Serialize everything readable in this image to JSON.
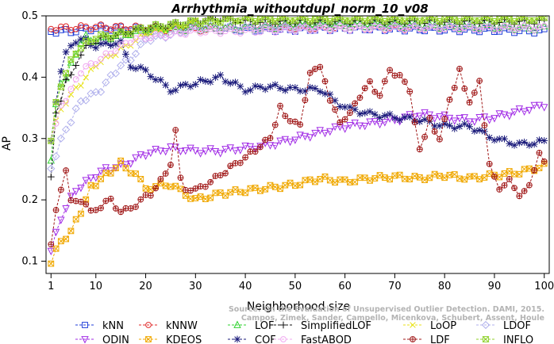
{
  "chart_data": {
    "type": "line",
    "title": "Arrhythmia_withoutdupl_norm_10_v08",
    "xlabel": "Neighborhood size",
    "ylabel": "AP",
    "xlim": [
      0,
      101
    ],
    "ylim": [
      0.08,
      0.5
    ],
    "x_ticks": [
      1,
      10,
      20,
      30,
      40,
      50,
      60,
      70,
      80,
      90,
      100
    ],
    "y_ticks": [
      0.1,
      0.2,
      0.3,
      0.4,
      0.5
    ],
    "legend_position": "bottom",
    "watermark": {
      "line1": "Source: On the Evaluation of Unsupervised Outlier Detection. DAMI, 2015.",
      "line2": "Campos, Zimek, Sander, Campello, Micenkova, Schubert, Assent, Houle"
    },
    "series": [
      {
        "name": "kNN",
        "color": "#1f3ed8",
        "marker": "square",
        "anchors": [
          [
            1,
            0.475
          ],
          [
            5,
            0.475
          ],
          [
            10,
            0.48
          ],
          [
            20,
            0.478
          ],
          [
            30,
            0.48
          ],
          [
            40,
            0.478
          ],
          [
            50,
            0.478
          ],
          [
            60,
            0.48
          ],
          [
            70,
            0.479
          ],
          [
            80,
            0.478
          ],
          [
            90,
            0.477
          ],
          [
            100,
            0.475
          ]
        ]
      },
      {
        "name": "kNNW",
        "color": "#e02a2a",
        "marker": "circle",
        "anchors": [
          [
            1,
            0.48
          ],
          [
            5,
            0.48
          ],
          [
            10,
            0.482
          ],
          [
            20,
            0.48
          ],
          [
            30,
            0.478
          ],
          [
            40,
            0.48
          ],
          [
            50,
            0.482
          ],
          [
            60,
            0.48
          ],
          [
            70,
            0.481
          ],
          [
            80,
            0.48
          ],
          [
            90,
            0.48
          ],
          [
            100,
            0.48
          ]
        ]
      },
      {
        "name": "LOF",
        "color": "#2ed32e",
        "marker": "triangle",
        "anchors": [
          [
            1,
            0.265
          ],
          [
            2,
            0.36
          ],
          [
            3,
            0.39
          ],
          [
            4,
            0.4
          ],
          [
            5,
            0.42
          ],
          [
            6,
            0.44
          ],
          [
            7,
            0.455
          ],
          [
            8,
            0.465
          ],
          [
            10,
            0.46
          ],
          [
            15,
            0.47
          ],
          [
            20,
            0.475
          ],
          [
            30,
            0.48
          ],
          [
            40,
            0.48
          ],
          [
            50,
            0.485
          ],
          [
            60,
            0.485
          ],
          [
            70,
            0.485
          ],
          [
            80,
            0.483
          ],
          [
            90,
            0.483
          ],
          [
            100,
            0.48
          ]
        ]
      },
      {
        "name": "SimplifiedLOF",
        "color": "#111111",
        "marker": "plus",
        "anchors": [
          [
            1,
            0.235
          ],
          [
            2,
            0.345
          ],
          [
            3,
            0.36
          ],
          [
            4,
            0.4
          ],
          [
            5,
            0.4
          ],
          [
            7,
            0.44
          ],
          [
            9,
            0.455
          ],
          [
            12,
            0.465
          ],
          [
            15,
            0.47
          ],
          [
            20,
            0.48
          ],
          [
            30,
            0.49
          ],
          [
            35,
            0.495
          ],
          [
            40,
            0.49
          ],
          [
            50,
            0.49
          ],
          [
            60,
            0.49
          ],
          [
            70,
            0.49
          ],
          [
            80,
            0.49
          ],
          [
            90,
            0.49
          ],
          [
            100,
            0.49
          ]
        ]
      },
      {
        "name": "LoOP",
        "color": "#e8e21a",
        "marker": "x",
        "anchors": [
          [
            1,
            0.3
          ],
          [
            2,
            0.33
          ],
          [
            4,
            0.36
          ],
          [
            6,
            0.38
          ],
          [
            8,
            0.4
          ],
          [
            10,
            0.42
          ],
          [
            14,
            0.44
          ],
          [
            20,
            0.47
          ],
          [
            30,
            0.49
          ],
          [
            40,
            0.495
          ],
          [
            50,
            0.495
          ],
          [
            60,
            0.495
          ],
          [
            70,
            0.495
          ],
          [
            80,
            0.495
          ],
          [
            90,
            0.495
          ],
          [
            100,
            0.495
          ]
        ]
      },
      {
        "name": "LDOF",
        "color": "#b0b0ec",
        "marker": "diamond",
        "anchors": [
          [
            1,
            0.25
          ],
          [
            3,
            0.3
          ],
          [
            5,
            0.33
          ],
          [
            7,
            0.36
          ],
          [
            9,
            0.37
          ],
          [
            11,
            0.38
          ],
          [
            13,
            0.4
          ],
          [
            15,
            0.42
          ],
          [
            17,
            0.43
          ],
          [
            20,
            0.46
          ],
          [
            25,
            0.47
          ],
          [
            30,
            0.48
          ],
          [
            40,
            0.48
          ],
          [
            50,
            0.48
          ],
          [
            60,
            0.48
          ],
          [
            70,
            0.48
          ],
          [
            80,
            0.48
          ],
          [
            90,
            0.48
          ],
          [
            100,
            0.48
          ]
        ]
      },
      {
        "name": "ODIN",
        "color": "#a22ee6",
        "marker": "triangle-down",
        "anchors": [
          [
            1,
            0.12
          ],
          [
            2,
            0.145
          ],
          [
            4,
            0.19
          ],
          [
            6,
            0.215
          ],
          [
            9,
            0.235
          ],
          [
            12,
            0.25
          ],
          [
            15,
            0.255
          ],
          [
            20,
            0.275
          ],
          [
            25,
            0.285
          ],
          [
            30,
            0.28
          ],
          [
            35,
            0.28
          ],
          [
            40,
            0.285
          ],
          [
            45,
            0.29
          ],
          [
            50,
            0.3
          ],
          [
            55,
            0.31
          ],
          [
            60,
            0.32
          ],
          [
            65,
            0.325
          ],
          [
            70,
            0.33
          ],
          [
            75,
            0.34
          ],
          [
            80,
            0.335
          ],
          [
            85,
            0.33
          ],
          [
            90,
            0.335
          ],
          [
            95,
            0.345
          ],
          [
            100,
            0.355
          ]
        ]
      },
      {
        "name": "KDEOS",
        "color": "#f0a800",
        "marker": "boxed-x",
        "anchors": [
          [
            1,
            0.1
          ],
          [
            2,
            0.12
          ],
          [
            3,
            0.13
          ],
          [
            5,
            0.15
          ],
          [
            7,
            0.18
          ],
          [
            9,
            0.22
          ],
          [
            12,
            0.24
          ],
          [
            15,
            0.26
          ],
          [
            18,
            0.24
          ],
          [
            20,
            0.22
          ],
          [
            25,
            0.225
          ],
          [
            28,
            0.21
          ],
          [
            30,
            0.2
          ],
          [
            35,
            0.21
          ],
          [
            40,
            0.215
          ],
          [
            45,
            0.22
          ],
          [
            50,
            0.225
          ],
          [
            55,
            0.235
          ],
          [
            60,
            0.23
          ],
          [
            65,
            0.235
          ],
          [
            70,
            0.238
          ],
          [
            75,
            0.235
          ],
          [
            80,
            0.24
          ],
          [
            85,
            0.235
          ],
          [
            90,
            0.24
          ],
          [
            95,
            0.245
          ],
          [
            100,
            0.255
          ]
        ]
      },
      {
        "name": "COF",
        "color": "#1a1a7a",
        "marker": "asterisk",
        "anchors": [
          [
            1,
            0.3
          ],
          [
            2,
            0.36
          ],
          [
            3,
            0.41
          ],
          [
            4,
            0.44
          ],
          [
            6,
            0.46
          ],
          [
            8,
            0.46
          ],
          [
            10,
            0.45
          ],
          [
            13,
            0.455
          ],
          [
            15,
            0.455
          ],
          [
            17,
            0.42
          ],
          [
            20,
            0.41
          ],
          [
            25,
            0.38
          ],
          [
            30,
            0.39
          ],
          [
            35,
            0.4
          ],
          [
            40,
            0.38
          ],
          [
            45,
            0.385
          ],
          [
            50,
            0.38
          ],
          [
            55,
            0.38
          ],
          [
            60,
            0.35
          ],
          [
            65,
            0.34
          ],
          [
            70,
            0.335
          ],
          [
            75,
            0.33
          ],
          [
            80,
            0.32
          ],
          [
            85,
            0.32
          ],
          [
            90,
            0.3
          ],
          [
            95,
            0.29
          ],
          [
            100,
            0.295
          ]
        ]
      },
      {
        "name": "FastABOD",
        "color": "#f0a8f0",
        "marker": "circle",
        "anchors": [
          [
            1,
            0.3
          ],
          [
            3,
            0.35
          ],
          [
            5,
            0.38
          ],
          [
            7,
            0.41
          ],
          [
            9,
            0.42
          ],
          [
            11,
            0.43
          ],
          [
            13,
            0.44
          ],
          [
            15,
            0.45
          ],
          [
            17,
            0.46
          ],
          [
            20,
            0.465
          ],
          [
            25,
            0.47
          ],
          [
            30,
            0.475
          ],
          [
            40,
            0.475
          ],
          [
            50,
            0.478
          ],
          [
            60,
            0.48
          ],
          [
            70,
            0.48
          ],
          [
            80,
            0.48
          ],
          [
            90,
            0.48
          ],
          [
            100,
            0.48
          ]
        ]
      },
      {
        "name": "LDF",
        "color": "#a01818",
        "marker": "circle-plus",
        "anchors": [
          [
            1,
            0.13
          ],
          [
            2,
            0.18
          ],
          [
            3,
            0.22
          ],
          [
            4,
            0.245
          ],
          [
            5,
            0.2
          ],
          [
            7,
            0.2
          ],
          [
            9,
            0.18
          ],
          [
            11,
            0.19
          ],
          [
            13,
            0.2
          ],
          [
            15,
            0.18
          ],
          [
            17,
            0.185
          ],
          [
            19,
            0.2
          ],
          [
            21,
            0.21
          ],
          [
            23,
            0.23
          ],
          [
            25,
            0.26
          ],
          [
            26,
            0.31
          ],
          [
            27,
            0.24
          ],
          [
            28,
            0.22
          ],
          [
            30,
            0.215
          ],
          [
            35,
            0.24
          ],
          [
            40,
            0.27
          ],
          [
            45,
            0.3
          ],
          [
            47,
            0.35
          ],
          [
            49,
            0.33
          ],
          [
            51,
            0.32
          ],
          [
            53,
            0.41
          ],
          [
            55,
            0.42
          ],
          [
            57,
            0.36
          ],
          [
            59,
            0.33
          ],
          [
            61,
            0.34
          ],
          [
            63,
            0.37
          ],
          [
            65,
            0.39
          ],
          [
            67,
            0.37
          ],
          [
            69,
            0.41
          ],
          [
            71,
            0.4
          ],
          [
            73,
            0.38
          ],
          [
            75,
            0.28
          ],
          [
            77,
            0.33
          ],
          [
            79,
            0.3
          ],
          [
            81,
            0.36
          ],
          [
            83,
            0.41
          ],
          [
            85,
            0.36
          ],
          [
            87,
            0.39
          ],
          [
            89,
            0.26
          ],
          [
            91,
            0.22
          ],
          [
            93,
            0.23
          ],
          [
            95,
            0.21
          ],
          [
            97,
            0.22
          ],
          [
            99,
            0.28
          ],
          [
            100,
            0.26
          ]
        ]
      },
      {
        "name": "INFLO",
        "color": "#8fd12a",
        "marker": "hourglass",
        "anchors": [
          [
            1,
            0.3
          ],
          [
            2,
            0.36
          ],
          [
            4,
            0.41
          ],
          [
            6,
            0.44
          ],
          [
            8,
            0.455
          ],
          [
            10,
            0.465
          ],
          [
            15,
            0.47
          ],
          [
            20,
            0.48
          ],
          [
            25,
            0.485
          ],
          [
            30,
            0.49
          ],
          [
            40,
            0.495
          ],
          [
            50,
            0.495
          ],
          [
            60,
            0.495
          ],
          [
            70,
            0.495
          ],
          [
            80,
            0.495
          ],
          [
            90,
            0.495
          ],
          [
            100,
            0.495
          ]
        ]
      }
    ]
  }
}
